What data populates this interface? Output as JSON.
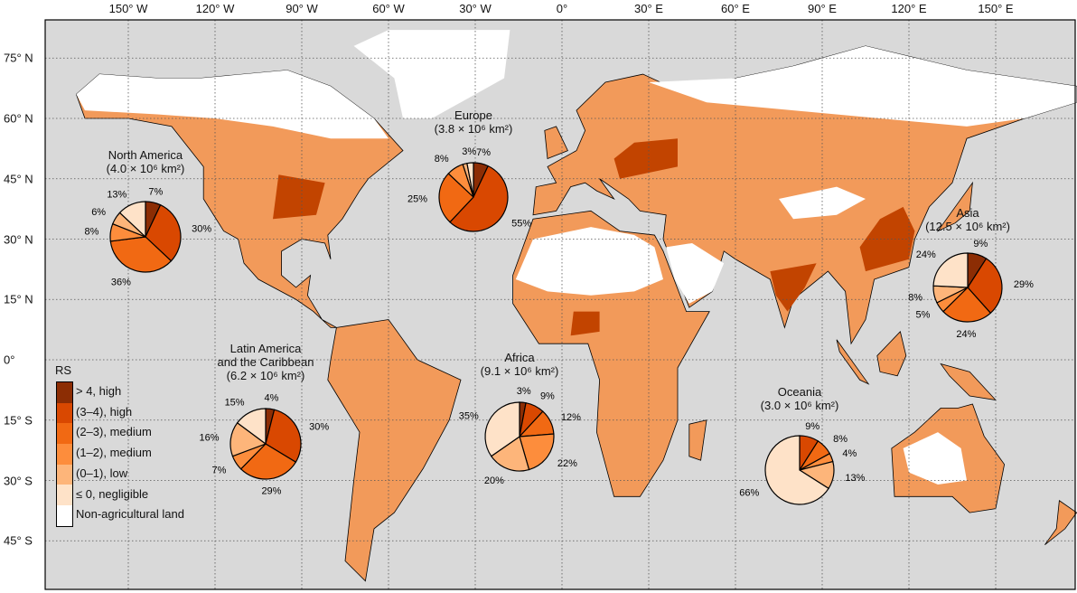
{
  "axes": {
    "lon_ticks": [
      {
        "label": "150° W",
        "lon": -150
      },
      {
        "label": "120° W",
        "lon": -120
      },
      {
        "label": "90° W",
        "lon": -90
      },
      {
        "label": "60° W",
        "lon": -60
      },
      {
        "label": "30° W",
        "lon": -30
      },
      {
        "label": "0°",
        "lon": 0
      },
      {
        "label": "30° E",
        "lon": 30
      },
      {
        "label": "60° E",
        "lon": 60
      },
      {
        "label": "90° E",
        "lon": 90
      },
      {
        "label": "120° E",
        "lon": 120
      },
      {
        "label": "150° E",
        "lon": 150
      }
    ],
    "lat_ticks": [
      {
        "label": "75° N",
        "lat": 75
      },
      {
        "label": "60° N",
        "lat": 60
      },
      {
        "label": "45° N",
        "lat": 45
      },
      {
        "label": "30° N",
        "lat": 30
      },
      {
        "label": "15° N",
        "lat": 15
      },
      {
        "label": "0°",
        "lat": 0
      },
      {
        "label": "15° S",
        "lat": -15
      },
      {
        "label": "30° S",
        "lat": -30
      },
      {
        "label": "45° S",
        "lat": -45
      }
    ]
  },
  "legend": {
    "title": "RS",
    "classes": [
      {
        "label": "> 4, high",
        "color": "#8c2d04"
      },
      {
        "label": "(3–4), high",
        "color": "#d94801"
      },
      {
        "label": "(2–3), medium",
        "color": "#f16913"
      },
      {
        "label": "(1–2), medium",
        "color": "#fd8d3c"
      },
      {
        "label": "(0–1), low",
        "color": "#fdb57a"
      },
      {
        "label": "≤ 0, negligible",
        "color": "#fee2c8"
      },
      {
        "label": "Non-agricultural land",
        "color": "#ffffff"
      }
    ]
  },
  "colors": {
    "ocean": "#d9d9d9",
    "land_base": "#f29a5a",
    "barren": "#ffffff"
  },
  "regions": [
    {
      "id": "north-america",
      "name": "North America",
      "area": "(4.0 × 10⁶ km²)",
      "values": [
        7,
        30,
        36,
        8,
        6,
        13
      ],
      "labels": [
        "7%",
        "30%",
        "36%",
        "8%",
        "6%",
        "13%"
      ]
    },
    {
      "id": "europe",
      "name": "Europe",
      "area": "(3.8 × 10⁶ km²)",
      "values": [
        7,
        55,
        25,
        8,
        2,
        3
      ],
      "labels": [
        "7%",
        "55%",
        "25%",
        "8%",
        "",
        "3%"
      ]
    },
    {
      "id": "asia",
      "name": "Asia",
      "area": "(12.5 × 10⁶ km²)",
      "values": [
        9,
        29,
        24,
        5,
        8,
        24
      ],
      "labels": [
        "9%",
        "29%",
        "24%",
        "5%",
        "8%",
        "24%"
      ]
    },
    {
      "id": "latin-america",
      "name": "Latin America\nand the Caribbean",
      "area": "(6.2 × 10⁶ km²)",
      "values": [
        4,
        30,
        29,
        7,
        16,
        15
      ],
      "labels": [
        "4%",
        "30%",
        "29%",
        "7%",
        "16%",
        "15%"
      ]
    },
    {
      "id": "africa",
      "name": "Africa",
      "area": "(9.1 × 10⁶ km²)",
      "values": [
        3,
        9,
        12,
        22,
        20,
        35
      ],
      "labels": [
        "3%",
        "9%",
        "12%",
        "22%",
        "20%",
        "35%"
      ]
    },
    {
      "id": "oceania",
      "name": "Oceania",
      "area": "(3.0 × 10⁶ km²)",
      "values": [
        0,
        9,
        8,
        4,
        13,
        66
      ],
      "labels": [
        "",
        "9%",
        "8%",
        "4%",
        "13%",
        "66%"
      ]
    }
  ]
}
